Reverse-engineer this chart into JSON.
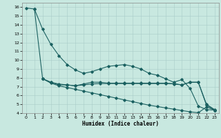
{
  "xlabel": "Humidex (Indice chaleur)",
  "bg_color": "#c8e8e0",
  "grid_color": "#a8ccc8",
  "line_color": "#1a6060",
  "xlim": [
    -0.5,
    23.5
  ],
  "ylim": [
    4,
    16.5
  ],
  "xticks": [
    0,
    1,
    2,
    3,
    4,
    5,
    6,
    7,
    8,
    9,
    10,
    11,
    12,
    13,
    14,
    15,
    16,
    17,
    18,
    19,
    20,
    21,
    22,
    23
  ],
  "yticks": [
    4,
    5,
    6,
    7,
    8,
    9,
    10,
    11,
    12,
    13,
    14,
    15,
    16
  ],
  "curve1_x": [
    0,
    1,
    2,
    3,
    4,
    5,
    6,
    7,
    8,
    9,
    10,
    11,
    12,
    13,
    14,
    15,
    16,
    17,
    18,
    19,
    20,
    21,
    22,
    23
  ],
  "curve1_y": [
    15.9,
    15.8,
    13.5,
    11.8,
    10.5,
    9.5,
    8.9,
    8.5,
    8.7,
    9.0,
    9.3,
    9.4,
    9.5,
    9.3,
    9.0,
    8.5,
    8.3,
    7.9,
    7.5,
    7.8,
    6.8,
    4.8,
    4.4,
    4.35
  ],
  "curve2_x": [
    2,
    3,
    4,
    5,
    6,
    7,
    8,
    9,
    10,
    11,
    12,
    13,
    14,
    15,
    16,
    17,
    18,
    19,
    20,
    21,
    22,
    23
  ],
  "curve2_y": [
    7.9,
    7.5,
    7.3,
    7.2,
    7.1,
    7.2,
    7.3,
    7.35,
    7.35,
    7.35,
    7.35,
    7.35,
    7.35,
    7.35,
    7.35,
    7.35,
    7.35,
    7.2,
    7.5,
    7.5,
    5.0,
    4.4
  ],
  "curve3_x": [
    2,
    3,
    4,
    5,
    6,
    7,
    8,
    9,
    10,
    11,
    12,
    13,
    14,
    15,
    16,
    17,
    18,
    19,
    20,
    21,
    22,
    23
  ],
  "curve3_y": [
    7.9,
    7.5,
    7.2,
    7.2,
    7.1,
    7.3,
    7.5,
    7.5,
    7.4,
    7.4,
    7.4,
    7.4,
    7.4,
    7.4,
    7.4,
    7.4,
    7.3,
    7.2,
    7.5,
    7.5,
    4.9,
    4.35
  ],
  "curve4_x": [
    1,
    2,
    3,
    4,
    5,
    6,
    7,
    8,
    9,
    10,
    11,
    12,
    13,
    14,
    15,
    16,
    17,
    18,
    19,
    20,
    21,
    22,
    23
  ],
  "curve4_y": [
    15.8,
    7.9,
    7.4,
    7.1,
    6.9,
    6.7,
    6.5,
    6.3,
    6.1,
    5.9,
    5.7,
    5.5,
    5.3,
    5.1,
    4.9,
    4.75,
    4.6,
    4.45,
    4.3,
    4.15,
    4.05,
    4.7,
    4.35
  ]
}
